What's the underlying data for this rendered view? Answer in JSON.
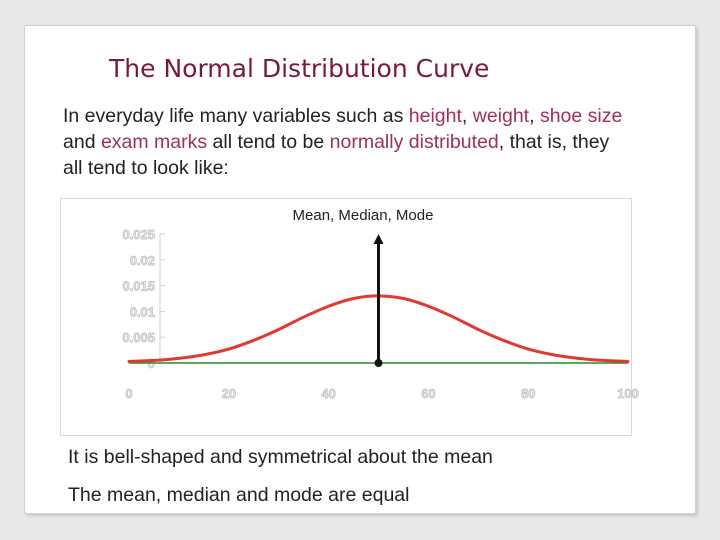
{
  "slide": {
    "title": "The Normal Distribution Curve",
    "intro": {
      "t1": "In everyday life many variables such as ",
      "h1": "height",
      "t2": ", ",
      "h2": "weight",
      "t3": ", ",
      "h3": "shoe size",
      "t4": " and ",
      "h4": "exam marks",
      "t5": " all tend to be ",
      "h5": "normally distributed",
      "t6": ", that is, they all tend to look like:"
    },
    "bullets": [
      "It is bell-shaped and symmetrical about the mean",
      "The mean, median and mode are equal"
    ],
    "colors": {
      "title": "#7a1a3a",
      "highlight": "#a0305a",
      "curve": "#e03a30",
      "axis": "#2a8a2a"
    }
  },
  "chart_data": {
    "type": "line",
    "annotation": "Mean, Median, Mode",
    "annotation_x": 50,
    "xlim": [
      0,
      100
    ],
    "ylim": [
      0,
      0.025
    ],
    "x_ticks": [
      "0",
      "20",
      "40",
      "60",
      "80",
      "100"
    ],
    "y_ticks": [
      "0.025",
      "0.02",
      "0.015",
      "0.01",
      "0.005",
      "0"
    ],
    "series": [
      {
        "x": [
          0,
          5,
          10,
          15,
          20,
          25,
          30,
          35,
          40,
          45,
          50,
          55,
          60,
          65,
          70,
          75,
          80,
          85,
          90,
          95,
          100
        ],
        "values": [
          0.0003,
          0.0005,
          0.0009,
          0.0016,
          0.0027,
          0.0044,
          0.0065,
          0.0089,
          0.011,
          0.0125,
          0.013,
          0.0125,
          0.011,
          0.0089,
          0.0065,
          0.0044,
          0.0027,
          0.0016,
          0.0009,
          0.0005,
          0.0003
        ]
      }
    ]
  }
}
